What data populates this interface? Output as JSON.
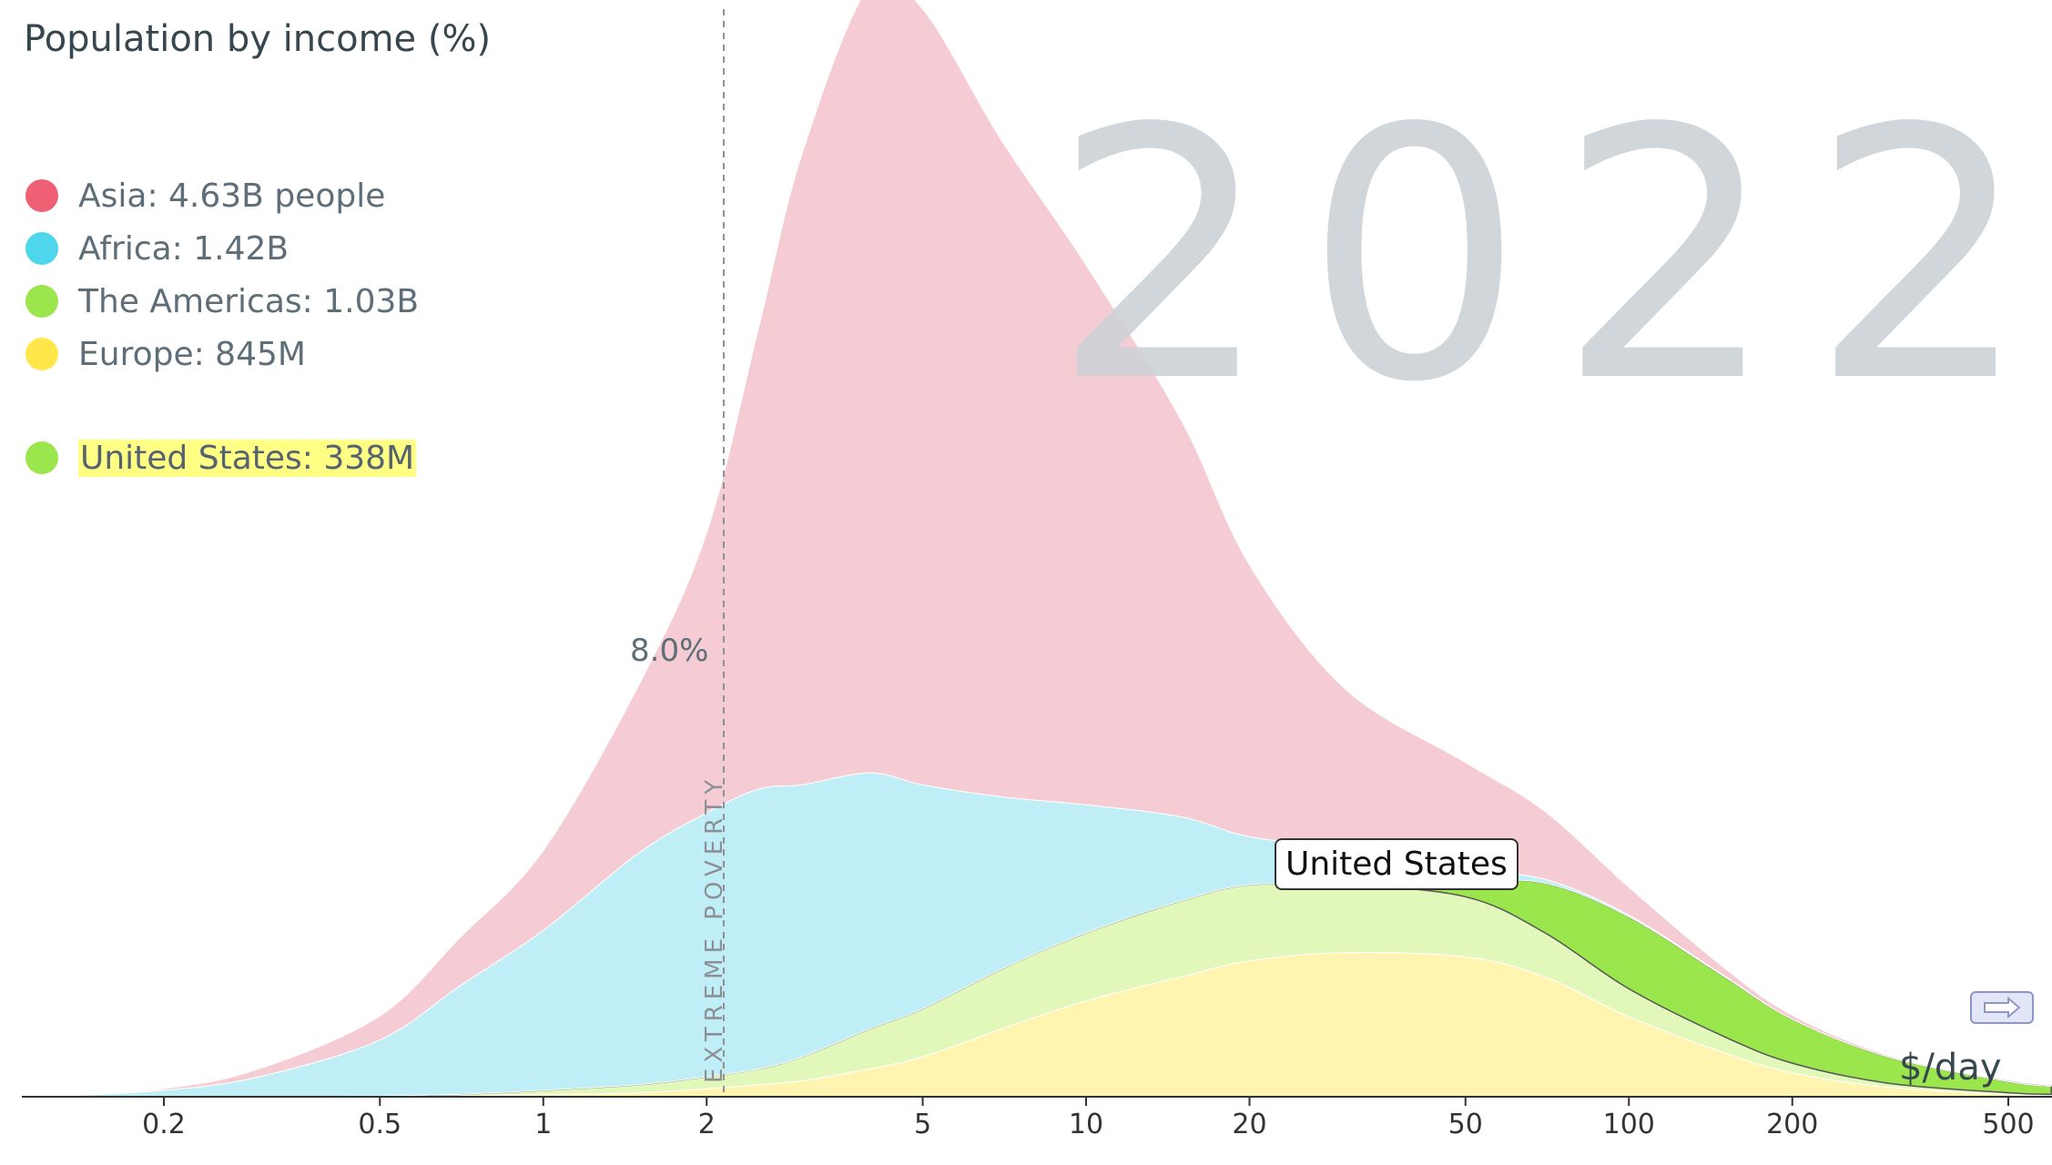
{
  "title": "Population by income (%)",
  "year": "2022",
  "legend": [
    {
      "label": "Asia: 4.63B people",
      "color": "#ef6074"
    },
    {
      "label": "Africa: 1.42B",
      "color": "#4dd6ec"
    },
    {
      "label": "The Americas: 1.03B",
      "color": "#9be64c"
    },
    {
      "label": "Europe: 845M",
      "color": "#ffe74a"
    }
  ],
  "selected": {
    "label": "United States: 338M",
    "color": "#9be64c"
  },
  "poverty_label": "EXTREME POVERTY",
  "y_value_label": "8.0%",
  "tooltip": "United States",
  "unit": "$/day",
  "chart_data": {
    "type": "area",
    "title": "Population by income (%)",
    "x_scale": "log",
    "x_ticks": [
      0.2,
      0.5,
      1,
      2,
      5,
      10,
      20,
      50,
      100,
      200,
      500
    ],
    "x_tick_labels": [
      "0.2",
      "0.5",
      "1",
      "2",
      "5",
      "10",
      "20",
      "50",
      "100",
      "200",
      "500"
    ],
    "xlim": [
      0.12,
      600
    ],
    "ylim": [
      0,
      13.6
    ],
    "poverty_line": 2.15,
    "reference_value": 8.0,
    "x": [
      0.12,
      0.2,
      0.3,
      0.5,
      0.7,
      1,
      1.5,
      2,
      2.5,
      3,
      4,
      5,
      7,
      10,
      15,
      20,
      30,
      50,
      70,
      100,
      150,
      200,
      300,
      500,
      600
    ],
    "series": [
      {
        "name": "Europe",
        "color": "#fff4b0",
        "values": [
          0,
          0,
          0,
          0,
          0.01,
          0.03,
          0.05,
          0.1,
          0.15,
          0.2,
          0.35,
          0.5,
          0.85,
          1.2,
          1.5,
          1.7,
          1.8,
          1.75,
          1.5,
          1.0,
          0.55,
          0.3,
          0.12,
          0.03,
          0.02
        ]
      },
      {
        "name": "The Americas",
        "color": "#e2f7ba",
        "values": [
          0,
          0,
          0,
          0.01,
          0.02,
          0.05,
          0.1,
          0.15,
          0.2,
          0.3,
          0.5,
          0.6,
          0.75,
          0.85,
          0.95,
          0.95,
          0.85,
          0.75,
          0.55,
          0.35,
          0.2,
          0.12,
          0.05,
          0.02,
          0.01
        ]
      },
      {
        "name": "United States",
        "color": "#9be64c",
        "values": [
          0,
          0,
          0,
          0,
          0,
          0,
          0,
          0,
          0,
          0,
          0,
          0,
          0,
          0,
          0,
          0,
          0,
          0.18,
          0.62,
          0.9,
          0.75,
          0.55,
          0.33,
          0.14,
          0.1
        ]
      },
      {
        "name": "Africa",
        "color": "#bfeef6",
        "values": [
          0,
          0.08,
          0.25,
          0.7,
          1.35,
          2.0,
          2.9,
          3.3,
          3.5,
          3.4,
          3.2,
          2.8,
          2.15,
          1.6,
          1.05,
          0.6,
          0.45,
          0.15,
          0.05,
          0.02,
          0.01,
          0,
          0,
          0,
          0
        ]
      },
      {
        "name": "Asia",
        "color": "#f6ccd4",
        "values": [
          0,
          0.02,
          0.1,
          0.3,
          0.6,
          1.0,
          2.1,
          3.5,
          5.8,
          7.9,
          9.85,
          9.7,
          8.2,
          6.75,
          4.95,
          3.4,
          2.0,
          1.35,
          0.85,
          0.35,
          0.1,
          0.05,
          0.02,
          0,
          0
        ]
      }
    ]
  }
}
